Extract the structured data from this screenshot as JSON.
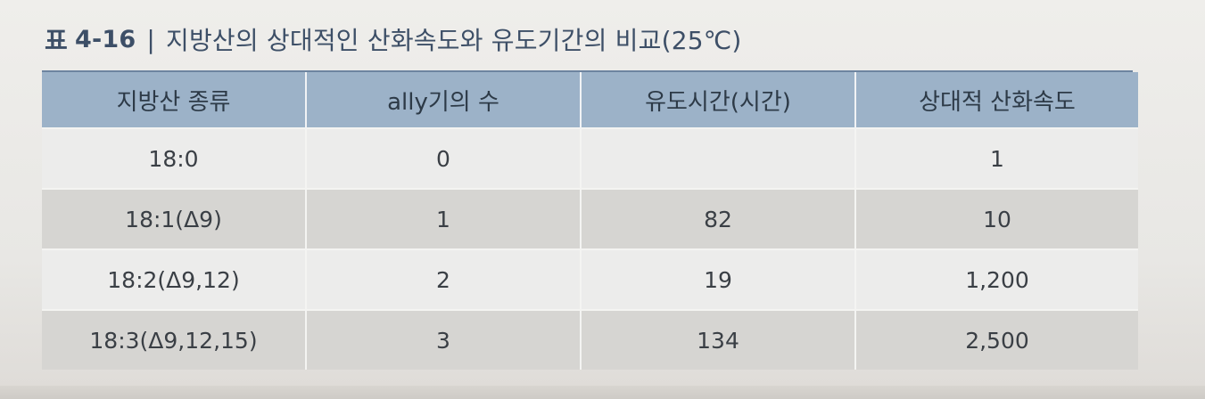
{
  "caption": {
    "label": "표",
    "number": "4-16",
    "separator": "|",
    "title": "지방산의 상대적인 산화속도와 유도기간의 비교(25℃)"
  },
  "table": {
    "headers": [
      "지방산 종류",
      "ally기의 수",
      "유도시간(시간)",
      "상대적 산화속도"
    ],
    "rows": [
      [
        "18:0",
        "0",
        "",
        "1"
      ],
      [
        "18:1(Δ9)",
        "1",
        "82",
        "10"
      ],
      [
        "18:2(Δ9,12)",
        "2",
        "19",
        "1,200"
      ],
      [
        "18:3(Δ9,12,15)",
        "3",
        "134",
        "2,500"
      ]
    ]
  },
  "colors": {
    "header_bg": "#9cb2c8",
    "row_light": "#ececeb",
    "row_dark": "#d6d5d2",
    "caption_text": "#3d4f67"
  }
}
